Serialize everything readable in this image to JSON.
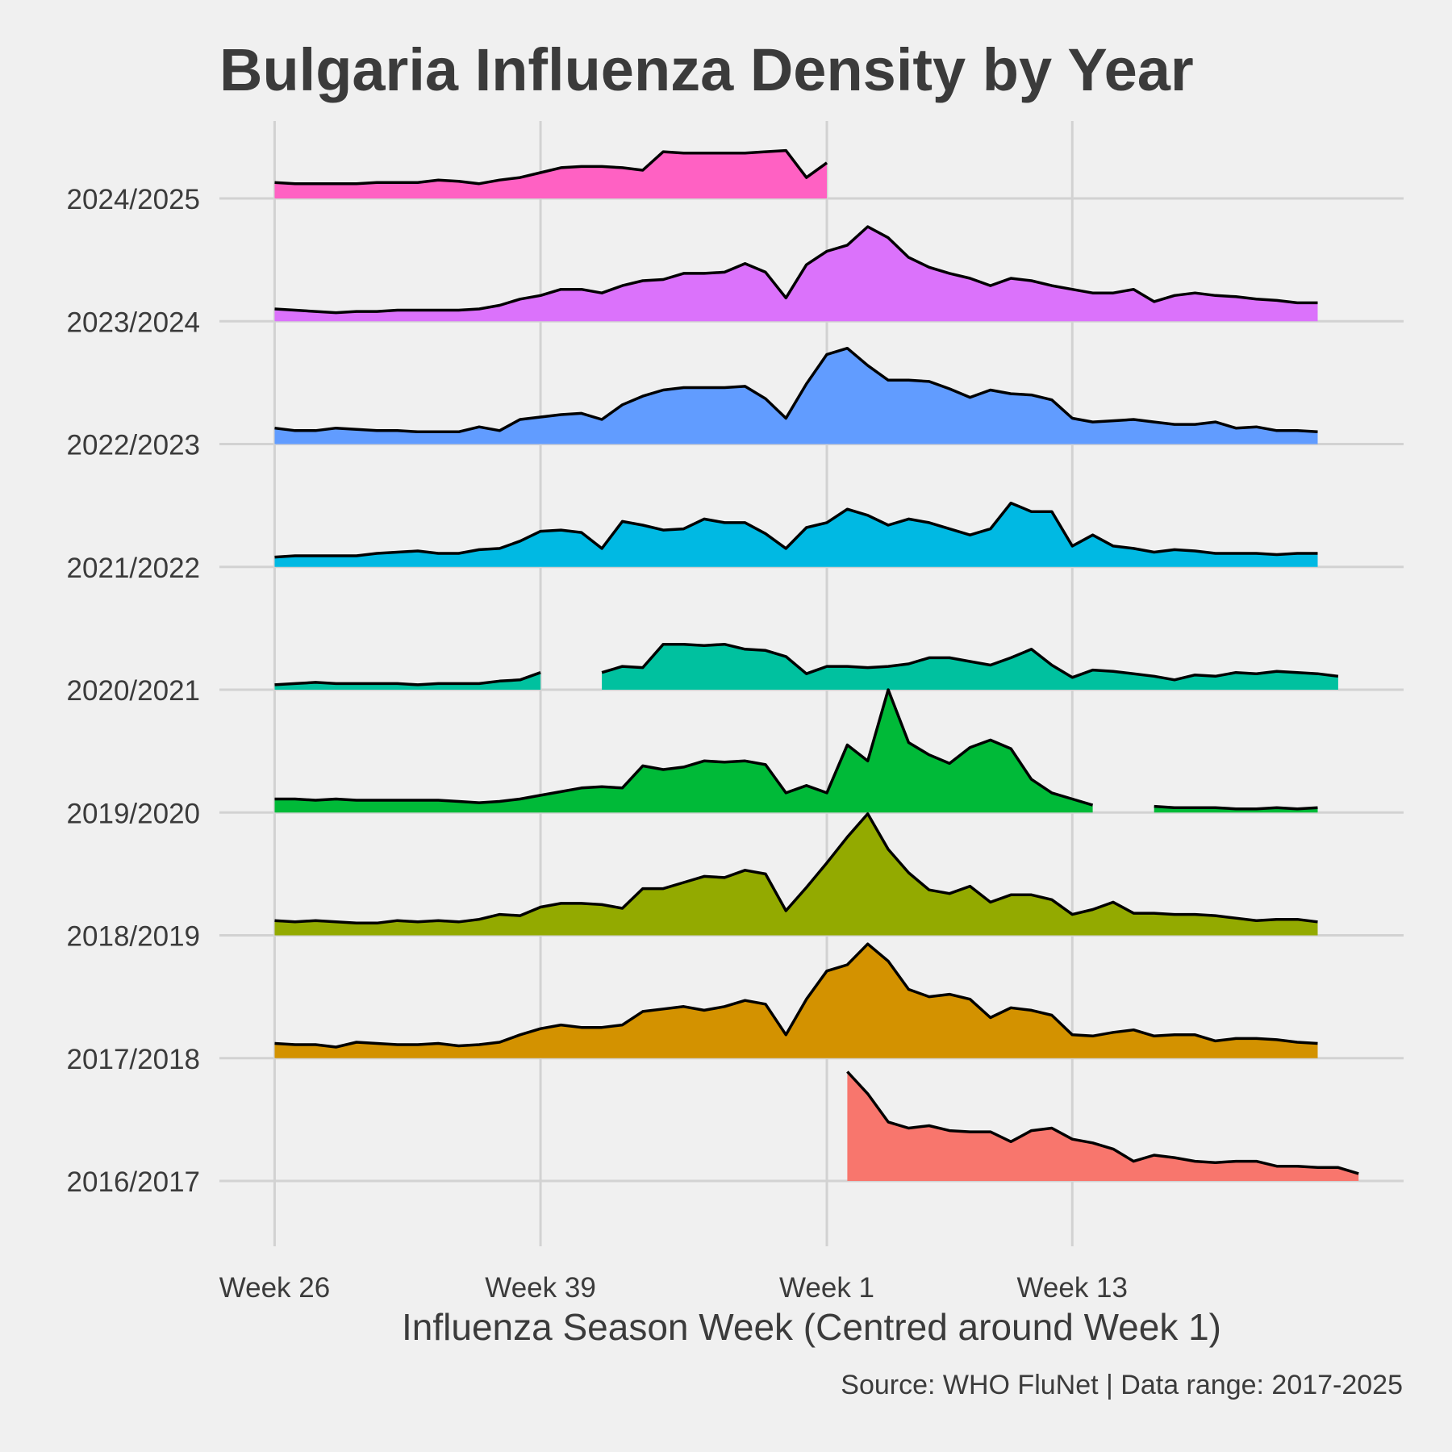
{
  "chart_data": {
    "type": "area",
    "title": "Bulgaria Influenza Density by Year",
    "xlabel": "Influenza Season Week (Centred around Week 1)",
    "ylabel": "",
    "caption": "Source: WHO FluNet | Data range: 2017-2025",
    "x_ticks": [
      "Week 26",
      "Week 39",
      "Week 1",
      "Week 13"
    ],
    "x_tick_positions": [
      1,
      14,
      28,
      40
    ],
    "x_range": [
      -1.7,
      56.2
    ],
    "season_spacing": 1.0,
    "y_range": [
      0,
      1
    ],
    "grid": true,
    "legend": "none",
    "line_color": "#000000",
    "series": [
      {
        "name": "2016/2017",
        "color": "#F8766D",
        "start": 29,
        "values": [
          0.89,
          0.71,
          0.48,
          0.43,
          0.45,
          0.41,
          0.4,
          0.4,
          0.32,
          0.41,
          0.43,
          0.34,
          0.31,
          0.26,
          0.16,
          0.21,
          0.19,
          0.16,
          0.15,
          0.16,
          0.16,
          0.12,
          0.12,
          0.11,
          0.11,
          0.06
        ]
      },
      {
        "name": "2017/2018",
        "color": "#D39200",
        "start": 1,
        "values": [
          0.12,
          0.11,
          0.11,
          0.09,
          0.13,
          0.12,
          0.11,
          0.11,
          0.12,
          0.1,
          0.11,
          0.13,
          0.19,
          0.24,
          0.27,
          0.25,
          0.25,
          0.27,
          0.38,
          0.4,
          0.42,
          0.39,
          0.42,
          0.47,
          0.44,
          0.19,
          0.48,
          0.71,
          0.76,
          0.93,
          0.79,
          0.56,
          0.5,
          0.52,
          0.48,
          0.33,
          0.41,
          0.39,
          0.35,
          0.19,
          0.18,
          0.21,
          0.23,
          0.18,
          0.19,
          0.19,
          0.14,
          0.16,
          0.16,
          0.15,
          0.13,
          0.12
        ]
      },
      {
        "name": "2018/2019",
        "color": "#93AA00",
        "start": 1,
        "values": [
          0.12,
          0.11,
          0.12,
          0.11,
          0.1,
          0.1,
          0.12,
          0.11,
          0.12,
          0.11,
          0.13,
          0.17,
          0.16,
          0.23,
          0.26,
          0.26,
          0.25,
          0.22,
          0.38,
          0.38,
          0.43,
          0.48,
          0.47,
          0.53,
          0.5,
          0.2,
          0.39,
          0.59,
          0.8,
          0.99,
          0.7,
          0.51,
          0.37,
          0.34,
          0.4,
          0.27,
          0.33,
          0.33,
          0.29,
          0.17,
          0.21,
          0.27,
          0.18,
          0.18,
          0.17,
          0.17,
          0.16,
          0.14,
          0.12,
          0.13,
          0.13,
          0.11
        ]
      },
      {
        "name": "2019/2020",
        "color": "#00BA38",
        "start": 1,
        "values": [
          0.11,
          0.11,
          0.1,
          0.11,
          0.1,
          0.1,
          0.1,
          0.1,
          0.1,
          0.09,
          0.08,
          0.09,
          0.11,
          0.14,
          0.17,
          0.2,
          0.21,
          0.2,
          0.38,
          0.35,
          0.37,
          0.42,
          0.41,
          0.42,
          0.39,
          0.16,
          0.22,
          0.16,
          0.55,
          0.42,
          1.0,
          0.57,
          0.47,
          0.4,
          0.53,
          0.59,
          0.52,
          0.27,
          0.16,
          0.11,
          0.06,
          null,
          null,
          0.05,
          0.04,
          0.04,
          0.04,
          0.03,
          0.03,
          0.04,
          0.03,
          0.04
        ]
      },
      {
        "name": "2020/2021",
        "color": "#00C19F",
        "start": 1,
        "values": [
          0.04,
          0.05,
          0.06,
          0.05,
          0.05,
          0.05,
          0.05,
          0.04,
          0.05,
          0.05,
          0.05,
          0.07,
          0.08,
          0.14,
          null,
          null,
          0.14,
          0.19,
          0.18,
          0.37,
          0.37,
          0.36,
          0.37,
          0.33,
          0.32,
          0.27,
          0.13,
          0.19,
          0.19,
          0.18,
          0.19,
          0.21,
          0.26,
          0.26,
          0.23,
          0.2,
          0.26,
          0.33,
          0.2,
          0.1,
          0.16,
          0.15,
          0.13,
          0.11,
          0.08,
          0.12,
          0.11,
          0.14,
          0.13,
          0.15,
          0.14,
          0.13,
          0.11
        ]
      },
      {
        "name": "2021/2022",
        "color": "#00B9E3",
        "start": 1,
        "values": [
          0.08,
          0.09,
          0.09,
          0.09,
          0.09,
          0.11,
          0.12,
          0.13,
          0.11,
          0.11,
          0.14,
          0.15,
          0.21,
          0.29,
          0.3,
          0.28,
          0.15,
          0.37,
          0.34,
          0.3,
          0.31,
          0.39,
          0.36,
          0.36,
          0.27,
          0.15,
          0.32,
          0.36,
          0.47,
          0.42,
          0.34,
          0.39,
          0.36,
          0.31,
          0.26,
          0.31,
          0.52,
          0.45,
          0.45,
          0.17,
          0.26,
          0.17,
          0.15,
          0.12,
          0.14,
          0.13,
          0.11,
          0.11,
          0.11,
          0.1,
          0.11,
          0.11
        ]
      },
      {
        "name": "2022/2023",
        "color": "#619CFF",
        "start": 1,
        "values": [
          0.13,
          0.11,
          0.11,
          0.13,
          0.12,
          0.11,
          0.11,
          0.1,
          0.1,
          0.1,
          0.14,
          0.11,
          0.2,
          0.22,
          0.24,
          0.25,
          0.2,
          0.32,
          0.39,
          0.44,
          0.46,
          0.46,
          0.46,
          0.47,
          0.37,
          0.21,
          0.49,
          0.73,
          0.78,
          0.64,
          0.52,
          0.52,
          0.51,
          0.45,
          0.38,
          0.44,
          0.41,
          0.4,
          0.36,
          0.21,
          0.18,
          0.19,
          0.2,
          0.18,
          0.16,
          0.16,
          0.18,
          0.13,
          0.14,
          0.11,
          0.11,
          0.1
        ]
      },
      {
        "name": "2023/2024",
        "color": "#DB72FB",
        "start": 1,
        "values": [
          0.1,
          0.09,
          0.08,
          0.07,
          0.08,
          0.08,
          0.09,
          0.09,
          0.09,
          0.09,
          0.1,
          0.13,
          0.18,
          0.21,
          0.26,
          0.26,
          0.23,
          0.29,
          0.33,
          0.34,
          0.39,
          0.39,
          0.4,
          0.47,
          0.4,
          0.19,
          0.46,
          0.57,
          0.62,
          0.77,
          0.68,
          0.52,
          0.44,
          0.39,
          0.35,
          0.29,
          0.35,
          0.33,
          0.29,
          0.26,
          0.23,
          0.23,
          0.26,
          0.16,
          0.21,
          0.23,
          0.21,
          0.2,
          0.18,
          0.17,
          0.15,
          0.15
        ]
      },
      {
        "name": "2024/2025",
        "color": "#FF61C3",
        "start": 1,
        "values": [
          0.13,
          0.12,
          0.12,
          0.12,
          0.12,
          0.13,
          0.13,
          0.13,
          0.15,
          0.14,
          0.12,
          0.15,
          0.17,
          0.21,
          0.25,
          0.26,
          0.26,
          0.25,
          0.23,
          0.38,
          0.37,
          0.37,
          0.37,
          0.37,
          0.38,
          0.39,
          0.17,
          0.29
        ]
      }
    ]
  }
}
